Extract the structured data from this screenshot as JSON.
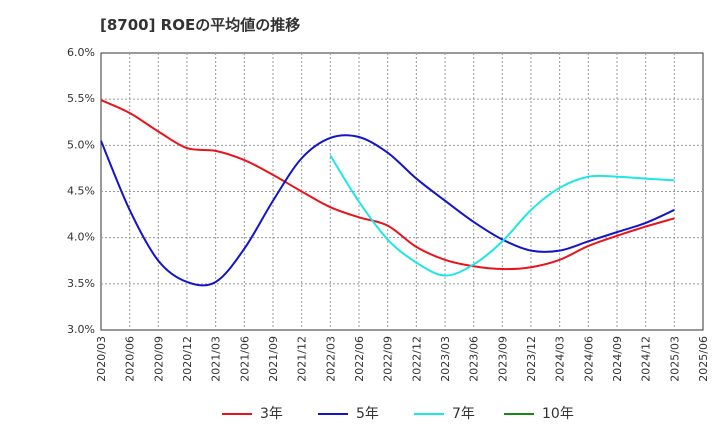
{
  "chart_data": {
    "type": "line",
    "title": "[8700]  ROEの平均値の推移",
    "xlabel": "",
    "ylabel": "",
    "ylim": [
      3.0,
      6.0
    ],
    "yticks": [
      "3.0%",
      "3.5%",
      "4.0%",
      "4.5%",
      "5.0%",
      "5.5%",
      "6.0%"
    ],
    "ytick_values": [
      3.0,
      3.5,
      4.0,
      4.5,
      5.0,
      5.5,
      6.0
    ],
    "categories": [
      "2020/03",
      "2020/06",
      "2020/09",
      "2020/12",
      "2021/03",
      "2021/06",
      "2021/09",
      "2021/12",
      "2022/03",
      "2022/06",
      "2022/09",
      "2022/12",
      "2023/03",
      "2023/06",
      "2023/09",
      "2023/12",
      "2024/03",
      "2024/06",
      "2024/09",
      "2024/12",
      "2025/03",
      "2025/06"
    ],
    "grid": true,
    "legend_position": "bottom",
    "series": [
      {
        "name": "3年",
        "color": "#e8141c",
        "values": [
          5.49,
          5.35,
          5.15,
          4.97,
          4.94,
          4.84,
          4.68,
          4.5,
          4.33,
          4.22,
          4.13,
          3.9,
          3.76,
          3.69,
          3.66,
          3.68,
          3.76,
          3.91,
          4.02,
          4.12,
          4.21,
          null
        ]
      },
      {
        "name": "5年",
        "color": "#1414c8",
        "values": [
          5.05,
          4.3,
          3.75,
          3.52,
          3.52,
          3.88,
          4.4,
          4.86,
          5.08,
          5.09,
          4.92,
          4.64,
          4.4,
          4.17,
          3.98,
          3.86,
          3.86,
          3.96,
          4.06,
          4.16,
          4.3,
          null
        ]
      },
      {
        "name": "7年",
        "color": "#1ee6e6",
        "values": [
          null,
          null,
          null,
          null,
          null,
          null,
          null,
          null,
          4.89,
          4.39,
          3.98,
          3.73,
          3.59,
          3.71,
          3.96,
          4.3,
          4.54,
          4.66,
          4.66,
          4.64,
          4.62,
          null
        ]
      },
      {
        "name": "10年",
        "color": "#148c14",
        "values": [
          null,
          null,
          null,
          null,
          null,
          null,
          null,
          null,
          null,
          null,
          null,
          null,
          null,
          null,
          null,
          null,
          null,
          null,
          null,
          null,
          null,
          null
        ]
      }
    ]
  }
}
